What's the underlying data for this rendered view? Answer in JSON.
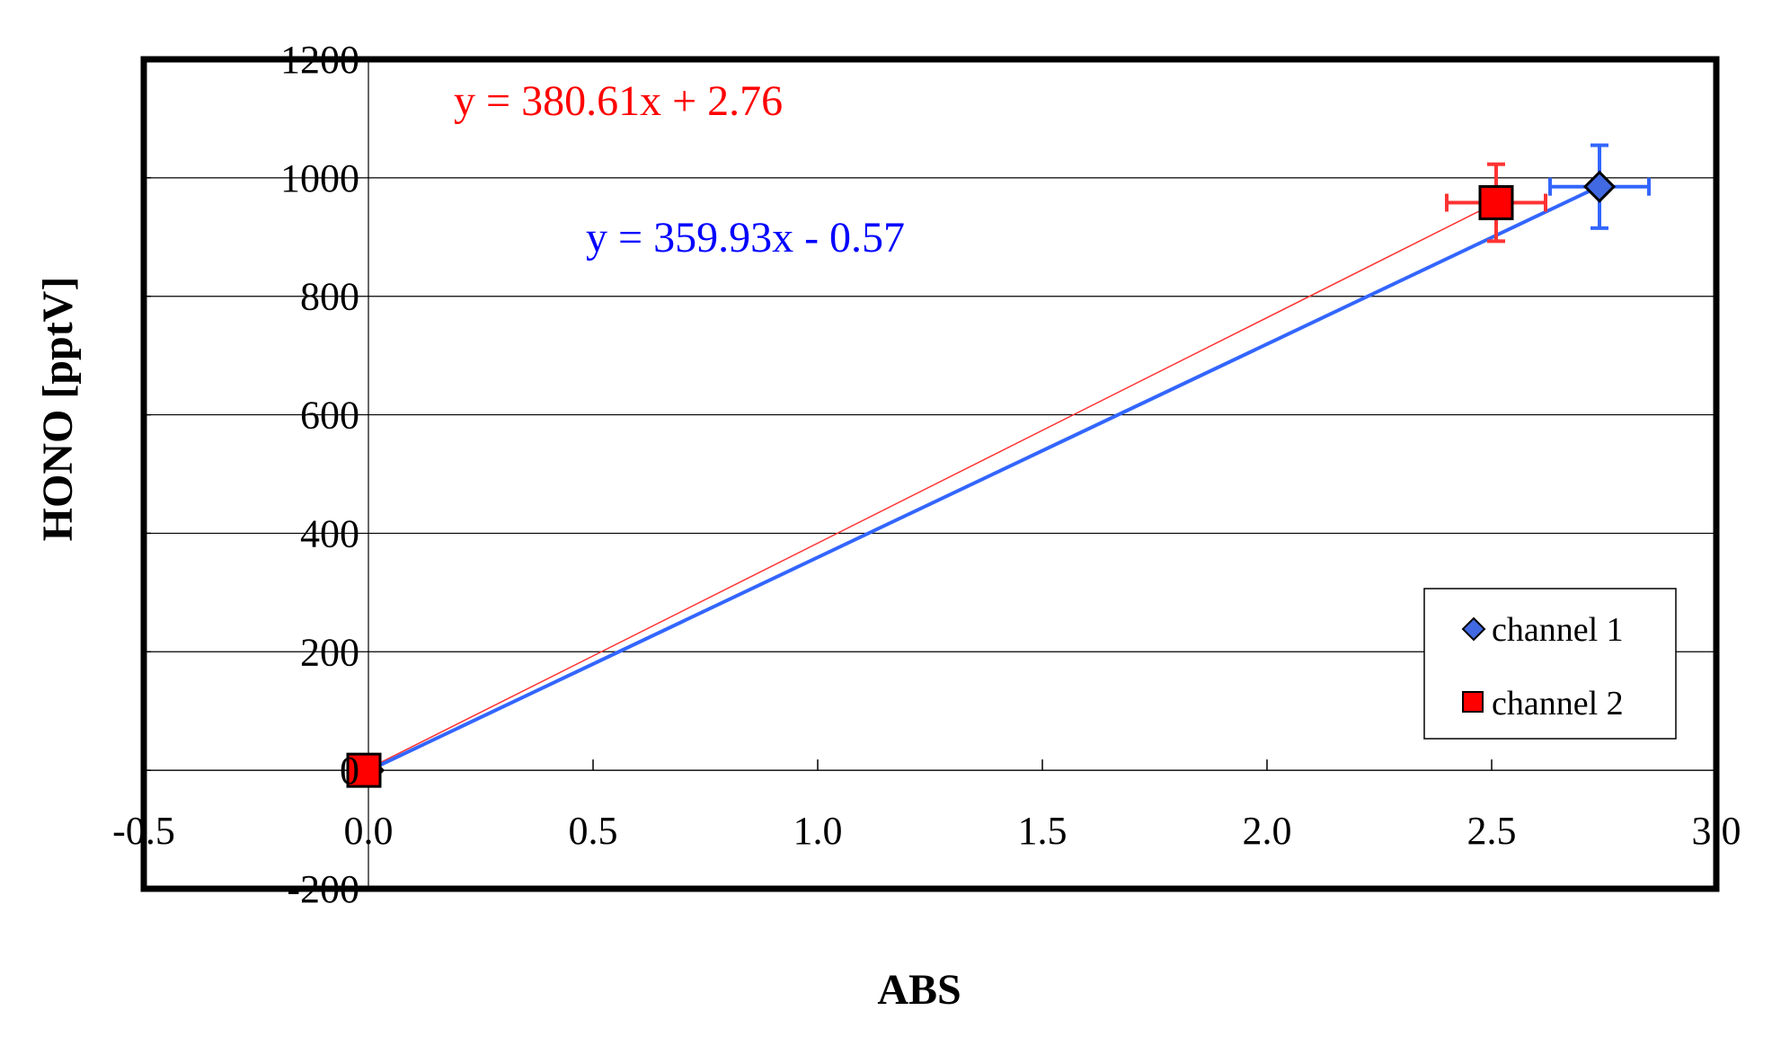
{
  "chart_data": {
    "type": "scatter",
    "xlabel": "ABS",
    "ylabel": "HONO [pptV]",
    "xlim": [
      -0.5,
      3.0
    ],
    "ylim": [
      -200,
      1200
    ],
    "x_ticks": [
      "-0.5",
      "0.0",
      "0.5",
      "1.0",
      "1.5",
      "2.0",
      "2.5",
      "3.0"
    ],
    "y_ticks": [
      "1200",
      "1000",
      "800",
      "600",
      "400",
      "200",
      "0",
      "-200"
    ],
    "grid": "horizontal major gridlines",
    "legend_position": "bottom-right",
    "series": [
      {
        "name": "channel 1",
        "marker": "diamond",
        "color": "#4169E1",
        "line_color": "#3366FF",
        "points": [
          {
            "x": 0.0,
            "y": 0
          },
          {
            "x": 2.74,
            "y": 985,
            "xerr": 0.11,
            "yerr": 70
          }
        ],
        "trendline": {
          "slope": 359.93,
          "intercept": -0.57,
          "equation": "y = 359.93x - 0.57"
        }
      },
      {
        "name": "channel 2",
        "marker": "square",
        "color": "#FF0000",
        "line_color": "#FF3333",
        "points": [
          {
            "x": -0.01,
            "y": 0
          },
          {
            "x": 2.51,
            "y": 958,
            "xerr": 0.11,
            "yerr": 65
          }
        ],
        "trendline": {
          "slope": 380.61,
          "intercept": 2.76,
          "equation": "y = 380.61x + 2.76"
        }
      }
    ]
  }
}
